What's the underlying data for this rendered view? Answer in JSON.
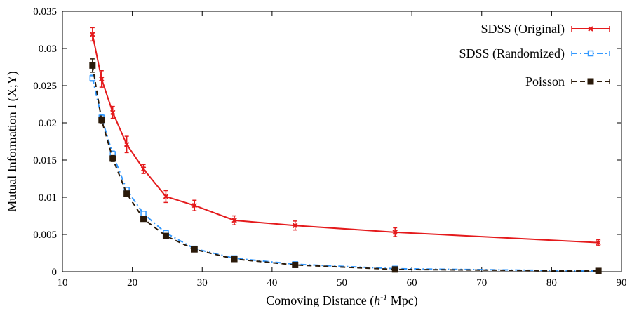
{
  "chart_data": {
    "type": "line",
    "xlabel_prefix": "Comoving Distance (",
    "xlabel_h": "h",
    "xlabel_sup": "-1",
    "xlabel_suffix": " Mpc)",
    "ylabel": "Mutual Information I (X;Y)",
    "xlim": [
      10,
      90
    ],
    "ylim": [
      0,
      0.035
    ],
    "x_ticks": [
      10,
      20,
      30,
      40,
      50,
      60,
      70,
      80,
      90
    ],
    "y_ticks": [
      0,
      0.005,
      0.01,
      0.015,
      0.02,
      0.025,
      0.03,
      0.035
    ],
    "x_tick_labels": [
      "10",
      "20",
      "30",
      "40",
      "50",
      "60",
      "70",
      "80",
      "90"
    ],
    "y_tick_labels": [
      "0",
      "0.005",
      "0.01",
      "0.015",
      "0.02",
      "0.025",
      "0.03",
      "0.035"
    ],
    "grid": false,
    "legend_position": "top-right",
    "series": [
      {
        "name": "SDSS (Original)",
        "color": "#e41a1c",
        "style": "solid",
        "marker": "x",
        "x": [
          14.3,
          15.6,
          17.2,
          19.2,
          21.6,
          24.8,
          28.9,
          34.6,
          43.3,
          57.6,
          86.7
        ],
        "y": [
          0.0319,
          0.0259,
          0.0214,
          0.0171,
          0.0138,
          0.0101,
          0.0089,
          0.0069,
          0.0062,
          0.0053,
          0.0039
        ],
        "err": [
          0.0009,
          0.0011,
          0.0008,
          0.0011,
          0.0006,
          0.0008,
          0.0007,
          0.0006,
          0.0006,
          0.0006,
          0.0004
        ]
      },
      {
        "name": "SDSS (Randomized)",
        "color": "#3399ff",
        "style": "dashdot",
        "marker": "square",
        "x": [
          14.3,
          15.6,
          17.2,
          19.2,
          21.6,
          24.8,
          28.9,
          34.6,
          43.3,
          57.6,
          86.7
        ],
        "y": [
          0.026,
          0.0207,
          0.0158,
          0.011,
          0.0078,
          0.0052,
          0.0031,
          0.0018,
          0.001,
          0.0004,
          0.0001
        ],
        "err": [
          0.0004,
          0.0004,
          0.0004,
          0.0003,
          0.0003,
          0.0003,
          0.0002,
          0.0002,
          0.0001,
          0.0001,
          0.0001
        ]
      },
      {
        "name": "Poisson",
        "color": "#2a1a0a",
        "style": "dashed",
        "marker": "filled-square",
        "x": [
          14.3,
          15.6,
          17.2,
          19.2,
          21.6,
          24.8,
          28.9,
          34.6,
          43.3,
          57.6,
          86.7
        ],
        "y": [
          0.0277,
          0.0204,
          0.0152,
          0.0105,
          0.0071,
          0.0048,
          0.003,
          0.0017,
          0.0009,
          0.0003,
          0.0001
        ],
        "err": [
          0.0009,
          0.0004,
          0.0004,
          0.0003,
          0.0003,
          0.0003,
          0.0002,
          0.0002,
          0.0001,
          0.0001,
          0.0001
        ]
      }
    ]
  }
}
